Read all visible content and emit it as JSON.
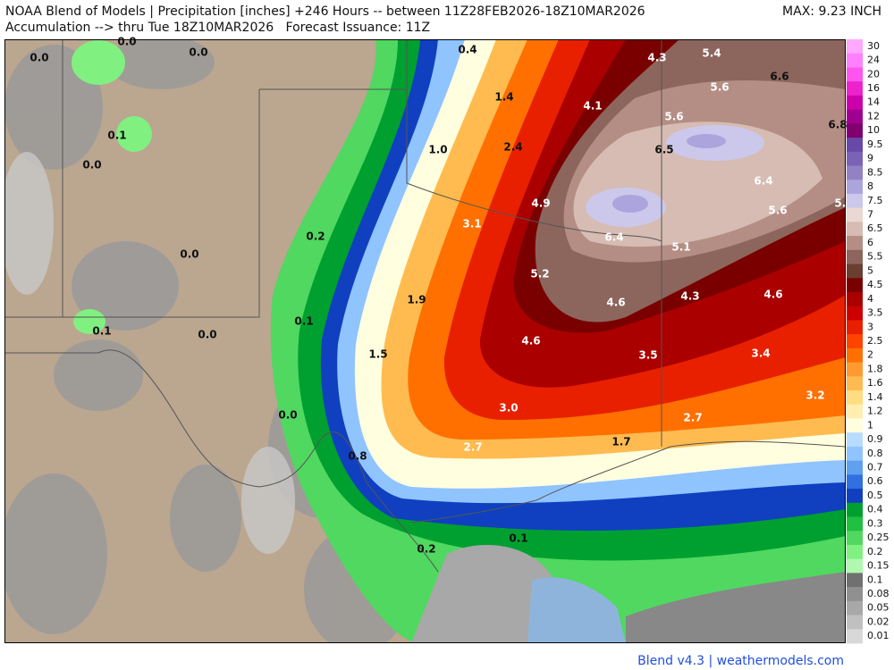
{
  "header": {
    "title": "NOAA Blend of Models | Precipitation [inches] +246 Hours -- between 11Z28FEB2026-18Z10MAR2026",
    "subtitle": "Accumulation --> thru Tue 18Z10MAR2026   Forecast Issuance: 11Z",
    "max": "MAX: 9.23 INCH"
  },
  "legend": {
    "items": [
      {
        "label": "30",
        "color": "#ffa8ff"
      },
      {
        "label": "24",
        "color": "#ff80ff"
      },
      {
        "label": "20",
        "color": "#ff55ee"
      },
      {
        "label": "16",
        "color": "#ee22cc"
      },
      {
        "label": "14",
        "color": "#cc00aa"
      },
      {
        "label": "12",
        "color": "#a00090"
      },
      {
        "label": "10",
        "color": "#800070"
      },
      {
        "label": "9.5",
        "color": "#6848a8"
      },
      {
        "label": "9",
        "color": "#7a62b4"
      },
      {
        "label": "8.5",
        "color": "#9282c4"
      },
      {
        "label": "8",
        "color": "#aca4dc"
      },
      {
        "label": "7.5",
        "color": "#ccc8ec"
      },
      {
        "label": "7",
        "color": "#ead8d2"
      },
      {
        "label": "6.5",
        "color": "#d6bcb2"
      },
      {
        "label": "6",
        "color": "#b48e84"
      },
      {
        "label": "5.5",
        "color": "#8c665c"
      },
      {
        "label": "5",
        "color": "#6a3f30"
      },
      {
        "label": "4.5",
        "color": "#7a0000"
      },
      {
        "label": "4",
        "color": "#aa0000"
      },
      {
        "label": "3.5",
        "color": "#cc0000"
      },
      {
        "label": "3",
        "color": "#e82000"
      },
      {
        "label": "2.5",
        "color": "#ff4400"
      },
      {
        "label": "2",
        "color": "#ff7000"
      },
      {
        "label": "1.8",
        "color": "#ff9a30"
      },
      {
        "label": "1.6",
        "color": "#ffbb50"
      },
      {
        "label": "1.4",
        "color": "#ffdd80"
      },
      {
        "label": "1.2",
        "color": "#ffeeb0"
      },
      {
        "label": "1",
        "color": "#ffffe0"
      },
      {
        "label": "0.9",
        "color": "#b8dcff"
      },
      {
        "label": "0.8",
        "color": "#90c4ff"
      },
      {
        "label": "0.7",
        "color": "#60a0f0"
      },
      {
        "label": "0.6",
        "color": "#3070e0"
      },
      {
        "label": "0.5",
        "color": "#1040c0"
      },
      {
        "label": "0.4",
        "color": "#00a030"
      },
      {
        "label": "0.3",
        "color": "#20c040"
      },
      {
        "label": "0.25",
        "color": "#50d860"
      },
      {
        "label": "0.2",
        "color": "#80f080"
      },
      {
        "label": "0.15",
        "color": "#b0f8b0"
      },
      {
        "label": "0.1",
        "color": "#707070"
      },
      {
        "label": "0.08",
        "color": "#909090"
      },
      {
        "label": "0.05",
        "color": "#a8a8a8"
      },
      {
        "label": "0.02",
        "color": "#c0c0c0"
      },
      {
        "label": "0.01",
        "color": "#d8d8d8"
      }
    ]
  },
  "map": {
    "labels": [
      "0.0",
      "0.0",
      "0.0",
      "0.4",
      "4.3",
      "5.4",
      "6.6",
      "5.6",
      "1.4",
      "4.1",
      "5.6",
      "6.8",
      "0.1",
      "1.0",
      "2.4",
      "6.5",
      "0.0",
      "6.4",
      "4.9",
      "5.6",
      "5.2",
      "3.1",
      "0.2",
      "6.4",
      "5.1",
      "0.0",
      "5.2",
      "1.9",
      "4.6",
      "4.3",
      "4.6",
      "0.1",
      "0.1",
      "0.0",
      "4.6",
      "1.5",
      "3.5",
      "3.4",
      "3.2",
      "3.0",
      "0.0",
      "2.7",
      "1.7",
      "2.7",
      "0.8",
      "0.1",
      "0.2"
    ]
  },
  "footer": "Blend v4.3 | weathermodels.com"
}
